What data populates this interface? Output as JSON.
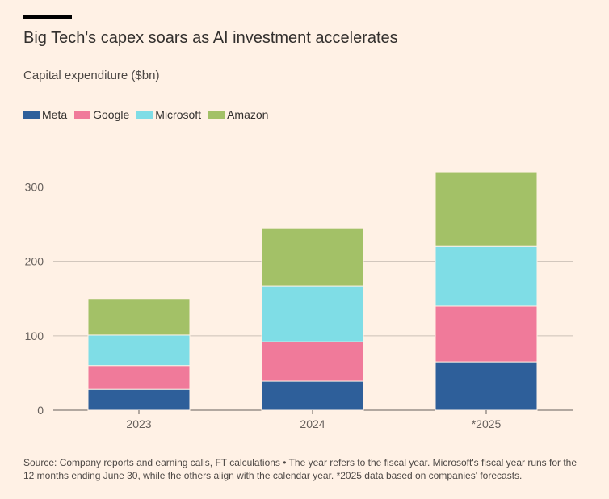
{
  "title": "Big Tech's capex soars as AI investment accelerates",
  "subtitle": "Capital expenditure ($bn)",
  "source": "Source: Company reports and earning calls, FT calculations • The year refers to the fiscal year. Microsoft's fiscal year runs for the 12 months ending June 30, while the others align with the calendar year. *2025 data based on companies' forecasts.",
  "chart_data": {
    "type": "bar",
    "stacked": true,
    "title": "Big Tech's capex soars as AI investment accelerates",
    "subtitle": "Capital expenditure ($bn)",
    "xlabel": "",
    "ylabel": "",
    "categories": [
      "2023",
      "2024",
      "*2025"
    ],
    "ylim": [
      0,
      330
    ],
    "yticks": [
      0,
      100,
      200,
      300
    ],
    "grid": true,
    "legend_position": "top-left",
    "series": [
      {
        "name": "Meta",
        "color": "#2E5F9A",
        "values": [
          28,
          39,
          65
        ]
      },
      {
        "name": "Google",
        "color": "#F07A9A",
        "values": [
          32,
          53,
          75
        ]
      },
      {
        "name": "Microsoft",
        "color": "#7FDDE6",
        "values": [
          41,
          75,
          80
        ]
      },
      {
        "name": "Amazon",
        "color": "#A3C167",
        "values": [
          49,
          78,
          100
        ]
      }
    ]
  }
}
